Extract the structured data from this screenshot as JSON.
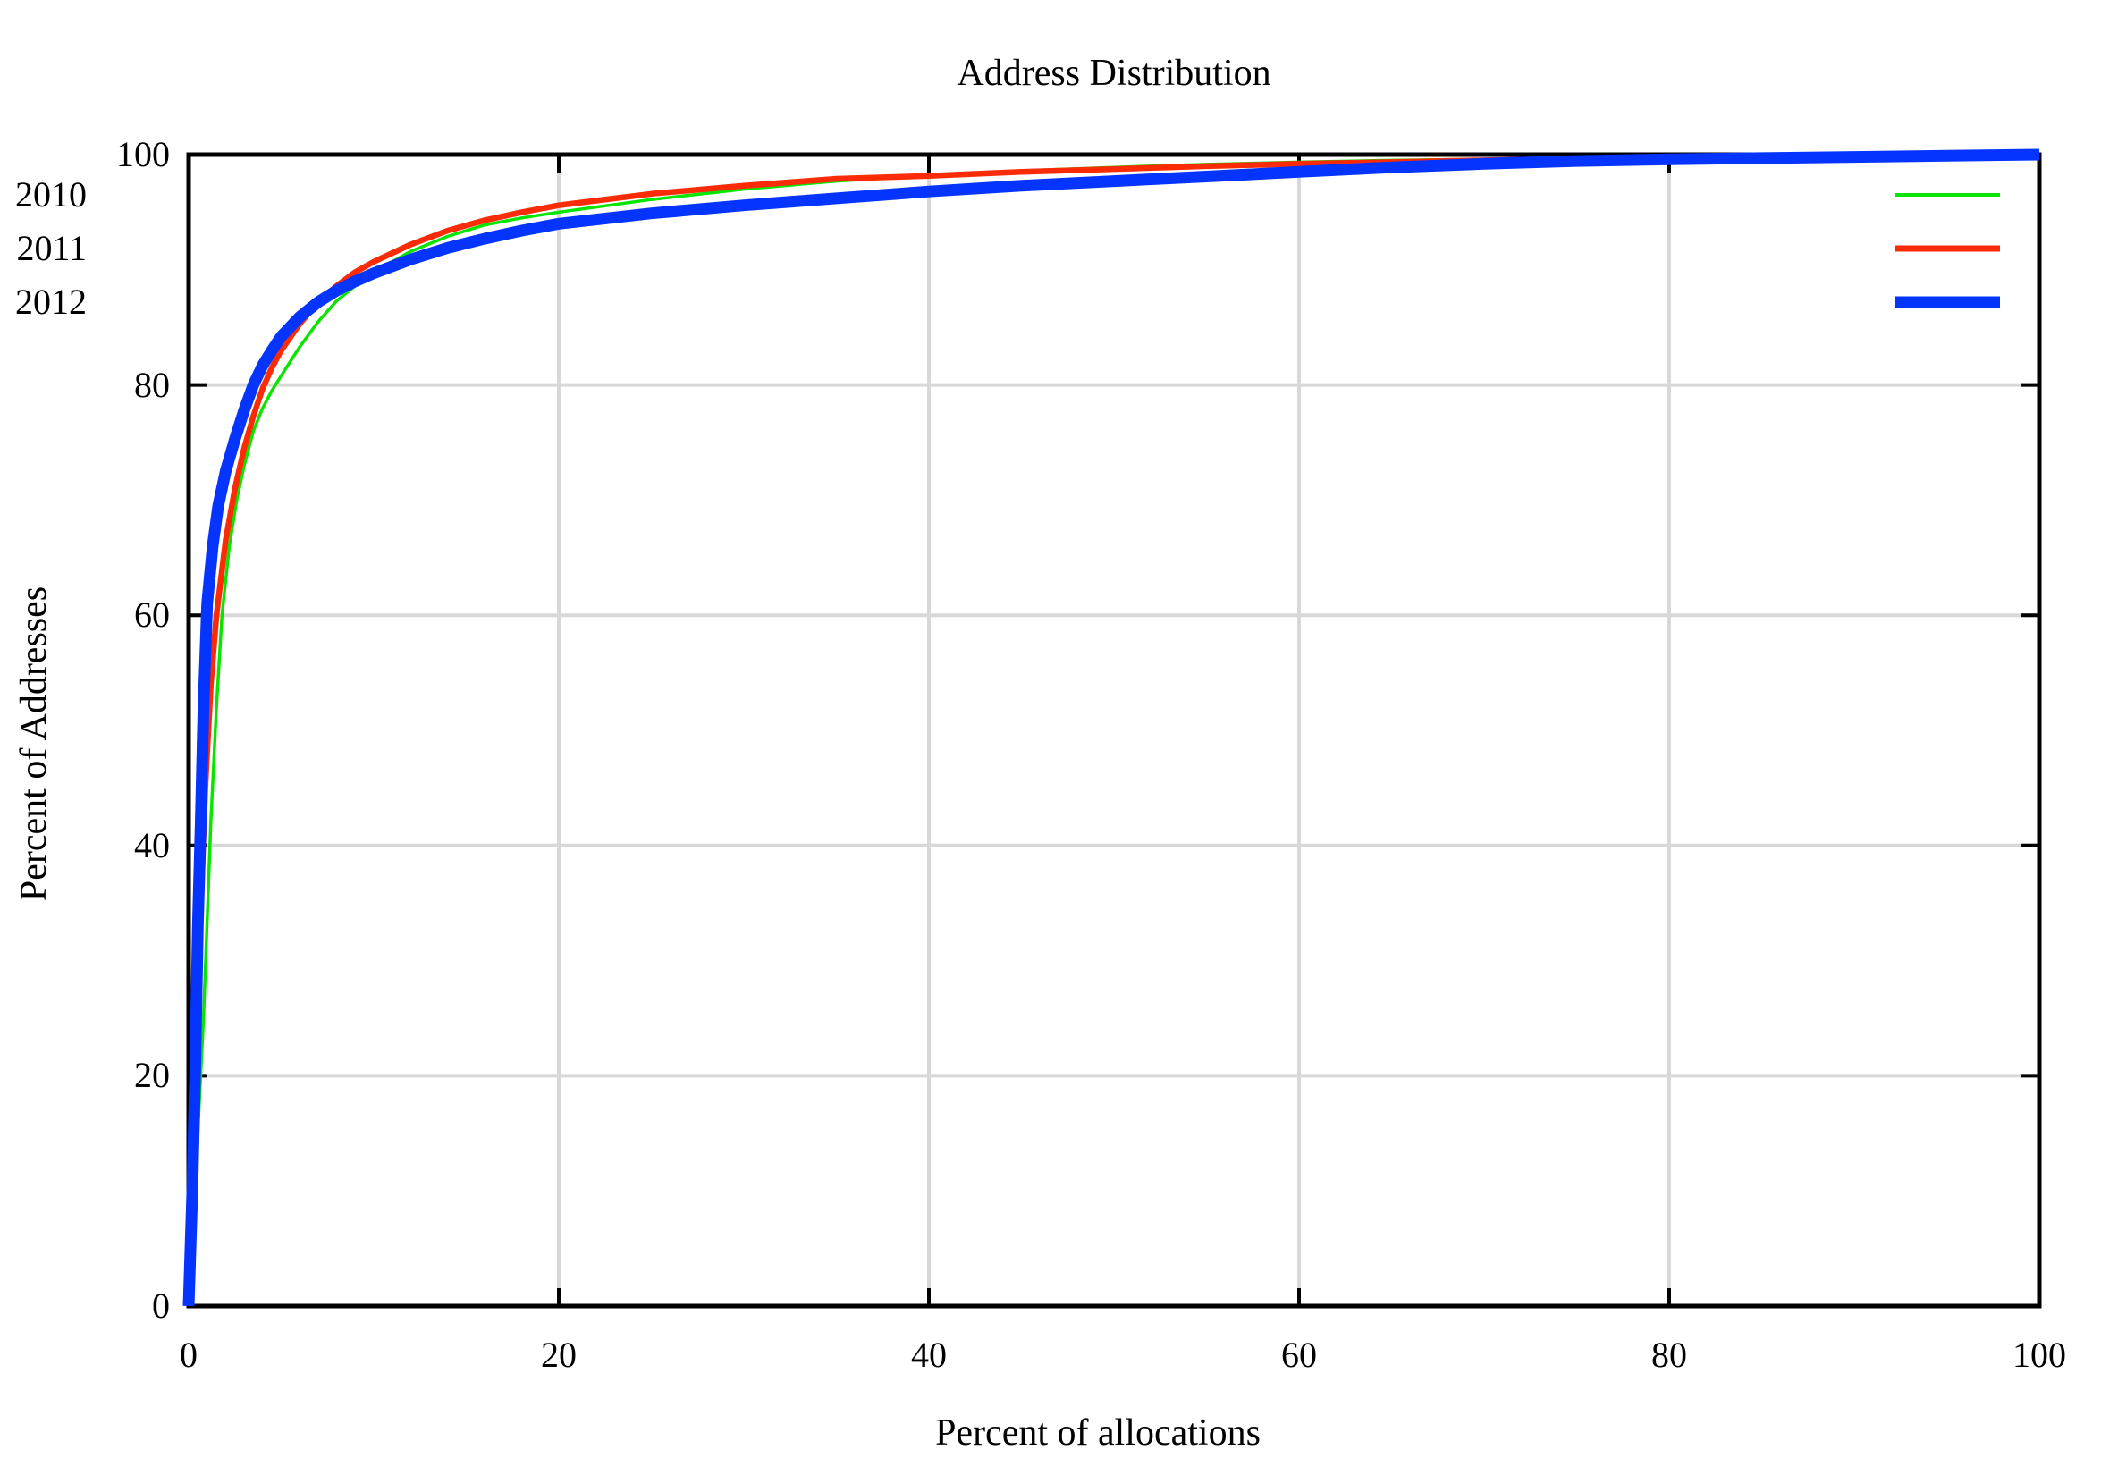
{
  "chart_data": {
    "type": "line",
    "title": "Address Distribution",
    "xlabel": "Percent of allocations",
    "ylabel": "Percent of Addresses",
    "xlim": [
      0,
      100
    ],
    "ylim": [
      0,
      100
    ],
    "x_ticks": [
      0,
      20,
      40,
      60,
      80,
      100
    ],
    "y_ticks": [
      100,
      80,
      60,
      40,
      20,
      0
    ],
    "grid": true,
    "grid_color": "#d8d8d8",
    "border_color": "#000000",
    "legend_position": "top-right-inside",
    "series": [
      {
        "name": "2010",
        "color": "#0ae400",
        "line_width": 3.5,
        "points": [
          [
            0,
            0
          ],
          [
            0.4,
            12
          ],
          [
            0.8,
            25
          ],
          [
            1.2,
            42
          ],
          [
            1.5,
            52
          ],
          [
            1.8,
            60
          ],
          [
            2.2,
            66
          ],
          [
            2.6,
            70
          ],
          [
            3,
            73
          ],
          [
            3.5,
            76
          ],
          [
            4,
            78
          ],
          [
            4.5,
            79.5
          ],
          [
            5,
            80.8
          ],
          [
            6,
            83.3
          ],
          [
            7,
            85.5
          ],
          [
            8,
            87.3
          ],
          [
            9,
            88.6
          ],
          [
            10,
            89.8
          ],
          [
            12,
            91.6
          ],
          [
            14,
            92.9
          ],
          [
            16,
            93.9
          ],
          [
            18,
            94.5
          ],
          [
            20,
            95
          ],
          [
            25,
            96.1
          ],
          [
            30,
            97
          ],
          [
            35,
            97.7
          ],
          [
            40,
            98.2
          ],
          [
            45,
            98.6
          ],
          [
            50,
            98.9
          ],
          [
            55,
            99.15
          ],
          [
            60,
            99.35
          ],
          [
            65,
            99.5
          ],
          [
            70,
            99.6
          ],
          [
            75,
            99.72
          ],
          [
            80,
            99.8
          ],
          [
            85,
            99.87
          ],
          [
            90,
            99.92
          ],
          [
            95,
            99.96
          ],
          [
            100,
            100
          ]
        ]
      },
      {
        "name": "2011",
        "color": "#fb2c05",
        "line_width": 6.5,
        "points": [
          [
            0,
            0
          ],
          [
            0.3,
            15
          ],
          [
            0.6,
            32
          ],
          [
            0.9,
            45
          ],
          [
            1.2,
            54
          ],
          [
            1.5,
            60
          ],
          [
            2,
            66.5
          ],
          [
            2.5,
            71
          ],
          [
            3,
            74.5
          ],
          [
            3.5,
            77.3
          ],
          [
            4,
            79.7
          ],
          [
            4.5,
            81.5
          ],
          [
            5,
            83
          ],
          [
            6,
            85.3
          ],
          [
            7,
            87.2
          ],
          [
            8,
            88.6
          ],
          [
            9,
            89.8
          ],
          [
            10,
            90.7
          ],
          [
            12,
            92.2
          ],
          [
            14,
            93.4
          ],
          [
            16,
            94.3
          ],
          [
            18,
            95
          ],
          [
            20,
            95.6
          ],
          [
            25,
            96.6
          ],
          [
            30,
            97.3
          ],
          [
            35,
            97.9
          ],
          [
            40,
            98.15
          ],
          [
            45,
            98.5
          ],
          [
            50,
            98.75
          ],
          [
            55,
            99
          ],
          [
            60,
            99.2
          ],
          [
            65,
            99.35
          ],
          [
            70,
            99.5
          ],
          [
            75,
            99.62
          ],
          [
            80,
            99.72
          ],
          [
            85,
            99.8
          ],
          [
            90,
            99.88
          ],
          [
            95,
            99.95
          ],
          [
            100,
            100
          ]
        ]
      },
      {
        "name": "2012",
        "color": "#0534ff",
        "line_width": 13,
        "points": [
          [
            0,
            0
          ],
          [
            0.2,
            10
          ],
          [
            0.35,
            20
          ],
          [
            0.5,
            33
          ],
          [
            0.65,
            42
          ],
          [
            0.8,
            52
          ],
          [
            1,
            61
          ],
          [
            1.3,
            66
          ],
          [
            1.6,
            69.5
          ],
          [
            2,
            72.5
          ],
          [
            2.5,
            75.3
          ],
          [
            3,
            77.8
          ],
          [
            3.5,
            80
          ],
          [
            4,
            81.7
          ],
          [
            4.5,
            83
          ],
          [
            5,
            84.2
          ],
          [
            6,
            85.9
          ],
          [
            7,
            87.2
          ],
          [
            8,
            88.2
          ],
          [
            9,
            89
          ],
          [
            10,
            89.7
          ],
          [
            12,
            90.9
          ],
          [
            14,
            91.9
          ],
          [
            16,
            92.7
          ],
          [
            18,
            93.4
          ],
          [
            20,
            94
          ],
          [
            25,
            94.9
          ],
          [
            30,
            95.6
          ],
          [
            35,
            96.2
          ],
          [
            40,
            96.8
          ],
          [
            45,
            97.3
          ],
          [
            50,
            97.7
          ],
          [
            55,
            98.1
          ],
          [
            60,
            98.5
          ],
          [
            65,
            98.9
          ],
          [
            70,
            99.2
          ],
          [
            75,
            99.45
          ],
          [
            80,
            99.6
          ],
          [
            85,
            99.7
          ],
          [
            90,
            99.8
          ],
          [
            95,
            99.9
          ],
          [
            100,
            100
          ]
        ]
      }
    ]
  }
}
